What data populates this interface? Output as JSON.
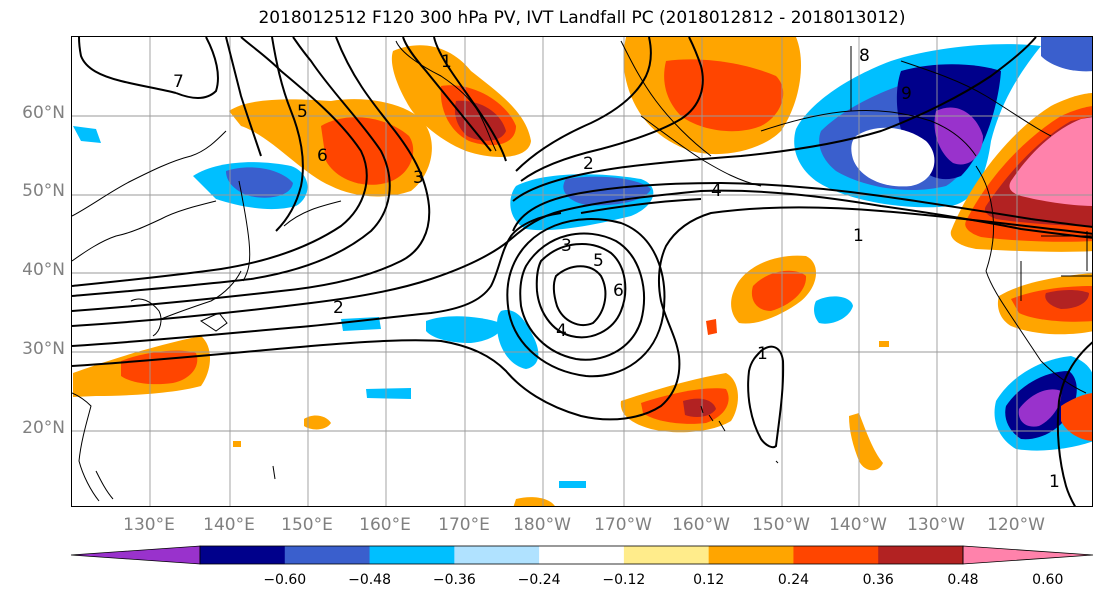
{
  "title": "2018012512 F120 300 hPa PV, IVT Landfall PC (2018012812 - 2018013012)",
  "lat_labels": [
    "60°N",
    "50°N",
    "40°N",
    "30°N",
    "20°N"
  ],
  "lon_labels": [
    "130°E",
    "140°E",
    "150°E",
    "160°E",
    "170°E",
    "180°W",
    "170°W",
    "160°W",
    "150°W",
    "140°W",
    "130°W",
    "120°W"
  ],
  "colorbar": {
    "colors": [
      "#9932cc",
      "#00008b",
      "#3a5fcd",
      "#00bfff",
      "#b0e2ff",
      "#ffffff",
      "#ffec8b",
      "#ffa500",
      "#ff4500",
      "#b22222",
      "#ff82ab"
    ],
    "tick_labels": [
      "−0.60",
      "−0.48",
      "−0.36",
      "−0.24",
      "−0.12",
      "0.12",
      "0.24",
      "0.36",
      "0.48",
      "0.60"
    ]
  },
  "contour_labels": [
    "7",
    "5",
    "6",
    "3",
    "2",
    "4",
    "1",
    "8",
    "9",
    "3",
    "5",
    "6",
    "4",
    "1",
    "2",
    "1",
    "1"
  ],
  "palette": {
    "negative_light": "#b0e2ff",
    "negative_mid": "#00bfff",
    "negative_strong": "#3a5fcd",
    "negative_deep": "#00008b",
    "negative_extreme": "#9932cc",
    "positive_light": "#ffec8b",
    "positive_mid": "#ffa500",
    "positive_strong": "#ff4500",
    "positive_deep": "#b22222",
    "positive_extreme": "#ff82ab"
  }
}
